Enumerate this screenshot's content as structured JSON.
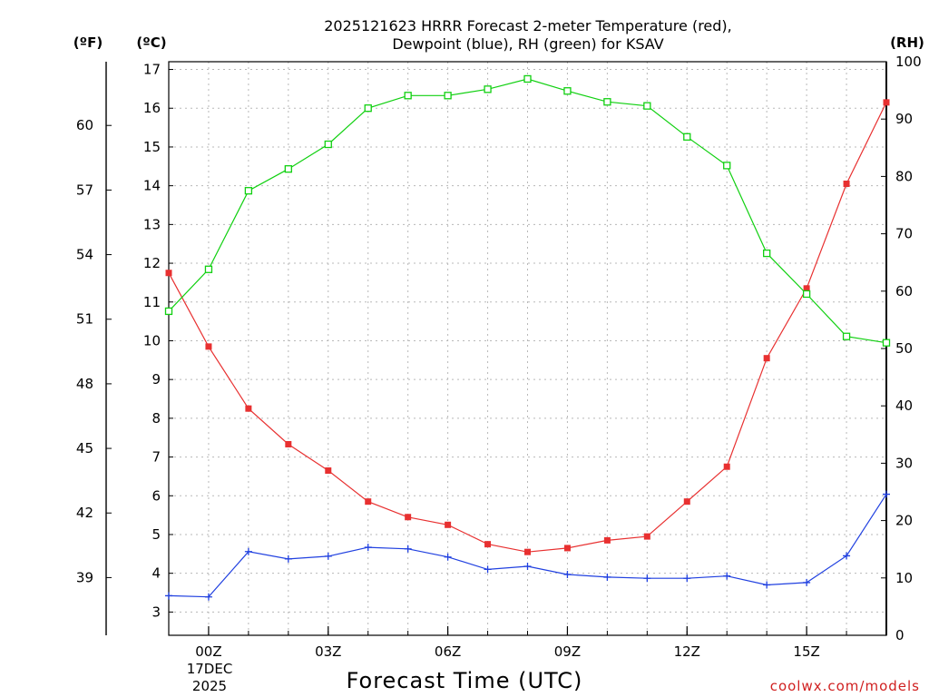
{
  "chart_data": {
    "type": "line",
    "title_lines": [
      "2025121623 HRRR Forecast 2-meter Temperature (red),",
      "Dewpoint (blue), RH (green) for KSAV"
    ],
    "unit_labels": {
      "fahrenheit": "(ºF)",
      "celsius": "(ºC)",
      "rh": "(RH)"
    },
    "xlabel": "Forecast Time (UTC)",
    "credit": "coolwx.com/models",
    "x_range": [
      -1,
      17
    ],
    "x_ticks": [
      {
        "x": 0,
        "label": "00Z"
      },
      {
        "x": 3,
        "label": "03Z"
      },
      {
        "x": 6,
        "label": "06Z"
      },
      {
        "x": 9,
        "label": "09Z"
      },
      {
        "x": 12,
        "label": "12Z"
      },
      {
        "x": 15,
        "label": "15Z"
      }
    ],
    "date_label": [
      "17DEC",
      "2025"
    ],
    "celsius_axis": {
      "range": [
        2.4,
        17.2
      ],
      "ticks": [
        3,
        4,
        5,
        6,
        7,
        8,
        9,
        10,
        11,
        12,
        13,
        14,
        15,
        16,
        17
      ]
    },
    "fahrenheit_axis": {
      "ticks": [
        39,
        42,
        45,
        48,
        51,
        54,
        57,
        60
      ]
    },
    "rh_axis": {
      "range": [
        0,
        100
      ],
      "ticks": [
        0,
        10,
        20,
        30,
        40,
        50,
        60,
        70,
        80,
        90,
        100
      ]
    },
    "series": [
      {
        "name": "Temperature",
        "axis": "celsius",
        "color": "#e83030",
        "marker": "filled-square",
        "x": [
          -1,
          0,
          1,
          2,
          3,
          4,
          5,
          6,
          7,
          8,
          9,
          10,
          11,
          12,
          13,
          14,
          15,
          16,
          17
        ],
        "values": [
          11.75,
          9.85,
          8.25,
          7.33,
          6.65,
          5.85,
          5.45,
          5.25,
          4.75,
          4.55,
          4.65,
          4.85,
          4.95,
          5.85,
          6.75,
          9.55,
          11.35,
          14.05,
          16.15
        ]
      },
      {
        "name": "Dewpoint",
        "axis": "celsius",
        "color": "#2040e0",
        "marker": "plus",
        "x": [
          -1,
          0,
          1,
          2,
          3,
          4,
          5,
          6,
          7,
          8,
          9,
          10,
          11,
          12,
          13,
          14,
          15,
          16,
          17
        ],
        "values": [
          3.42,
          3.39,
          4.56,
          4.37,
          4.44,
          4.67,
          4.63,
          4.42,
          4.1,
          4.18,
          3.97,
          3.9,
          3.87,
          3.87,
          3.93,
          3.7,
          3.76,
          4.45,
          6.04
        ]
      },
      {
        "name": "RH",
        "axis": "rh",
        "color": "#10d010",
        "marker": "open-square",
        "x": [
          -1,
          0,
          1,
          2,
          3,
          4,
          5,
          6,
          7,
          8,
          9,
          10,
          11,
          12,
          13,
          14,
          15,
          16,
          17
        ],
        "values": [
          56.5,
          63.8,
          77.5,
          81.3,
          85.6,
          91.9,
          94.1,
          94.1,
          95.2,
          97.0,
          94.9,
          93.0,
          92.3,
          86.9,
          81.9,
          66.6,
          59.5,
          52.1,
          51.0
        ]
      }
    ]
  }
}
